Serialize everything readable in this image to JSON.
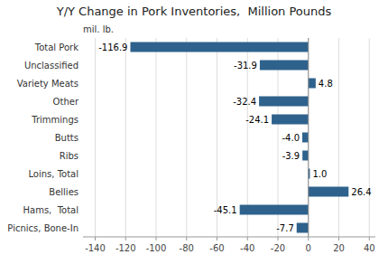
{
  "chart_data": {
    "type": "bar",
    "orientation": "horizontal",
    "title": "Y/Y Change in Pork Inventories,  Million Pounds",
    "annotations": [
      "mil. lb."
    ],
    "categories": [
      "Total Pork",
      "Unclassified",
      "Variety Meats",
      "Other",
      "Trimmings",
      "Butts",
      "Ribs",
      "Loins, Total",
      "Bellies",
      "Hams,  Total",
      "Picnics, Bone-In"
    ],
    "values": [
      -116.9,
      -31.9,
      4.8,
      -32.4,
      -24.1,
      -4.0,
      -3.9,
      1.0,
      26.4,
      -45.1,
      -7.7
    ],
    "value_labels": [
      "-116.9",
      "-31.9",
      "4.8",
      "-32.4",
      "-24.1",
      "-4.0",
      "-3.9",
      "1.0",
      "26.4",
      "-45.1",
      "-7.7"
    ],
    "data_labels": true,
    "color": "#2E628C",
    "xlim": [
      -148,
      44
    ],
    "xticks": [
      -140,
      -120,
      -100,
      -80,
      -60,
      -40,
      -20,
      0,
      20,
      40
    ],
    "grid": true
  }
}
